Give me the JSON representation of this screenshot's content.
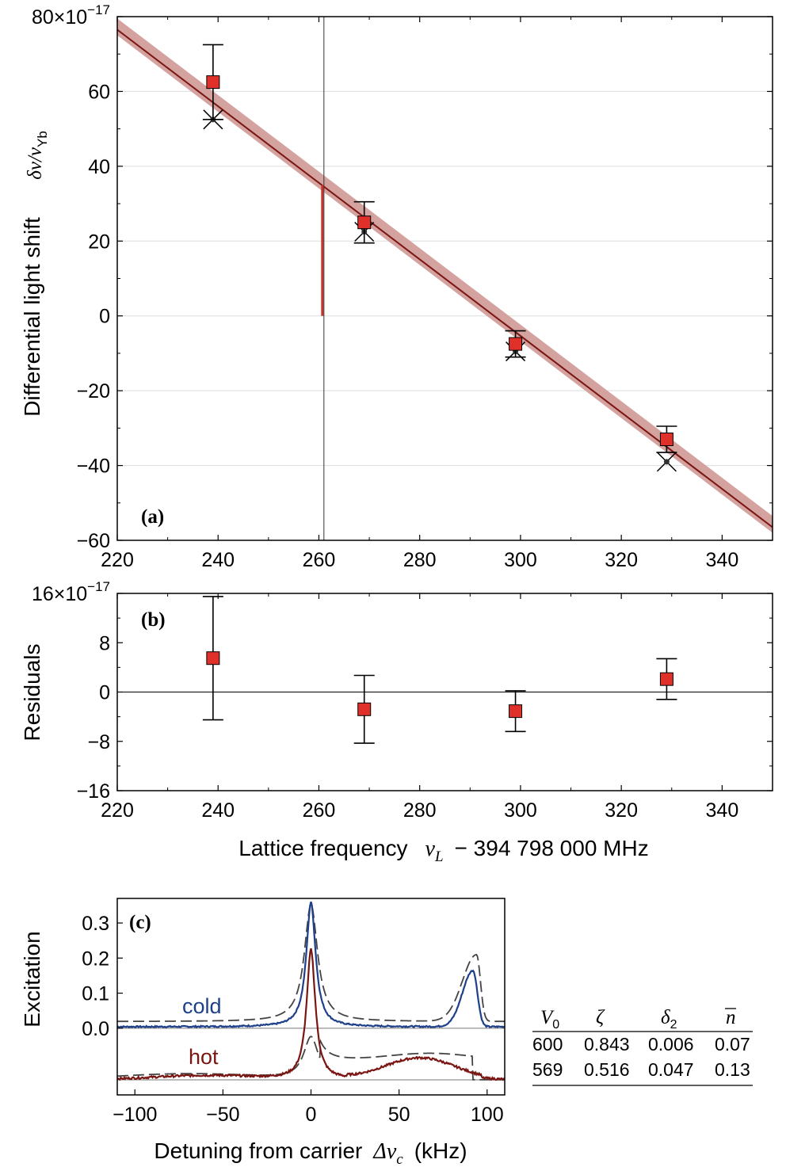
{
  "colors": {
    "fit_line": "#7a1512",
    "fit_band": "#d4a3a0",
    "marker_fill": "#e0302a",
    "vertical_bar": "#c8302a",
    "cold_curve": "#1e3f8a",
    "hot_curve": "#7a1512",
    "grid": "#dddddd",
    "dashed": "#444444"
  },
  "chart_data": [
    {
      "id": "a",
      "type": "scatter",
      "panel_tag": "(a)",
      "ylabel": "Differential light shift",
      "ylabel_symbol": "δν/ν",
      "ylabel_subscript": "Yb",
      "ylim": [
        -60,
        80
      ],
      "xlim": [
        220,
        350
      ],
      "yticks": [
        -60,
        -40,
        -20,
        0,
        20,
        40,
        60,
        80
      ],
      "ytick_labels": [
        "−60",
        "−40",
        "−20",
        "0",
        "20",
        "40",
        "60",
        "80×10"
      ],
      "y_exponent": "−17",
      "xticks": [
        220,
        240,
        260,
        280,
        300,
        320,
        340
      ],
      "xtick_labels": [
        "220",
        "240",
        "260",
        "280",
        "300",
        "320",
        "340"
      ],
      "grid": true,
      "fit_line": {
        "x": [
          220,
          350
        ],
        "y": [
          76.5,
          -56.5
        ]
      },
      "fit_band_halfwidth": 1.5,
      "vertical_marker": {
        "x": 261,
        "y_bottom": 0,
        "y_top": 35
      },
      "vertical_line_x": 261,
      "measurements": [
        {
          "x": 239,
          "y": 62.5,
          "err": 10
        },
        {
          "x": 269,
          "y": 25,
          "err": 5.5
        },
        {
          "x": 299,
          "y": -7.5,
          "err": 3.5
        },
        {
          "x": 329,
          "y": -33,
          "err": 3.5
        }
      ],
      "alt_points": [
        {
          "x": 239,
          "y": 52.5
        },
        {
          "x": 269,
          "y": 22.5
        },
        {
          "x": 299,
          "y": -9.5
        },
        {
          "x": 329,
          "y": -39
        }
      ]
    },
    {
      "id": "b",
      "type": "scatter",
      "panel_tag": "(b)",
      "ylabel": "Residuals",
      "ylim": [
        -16,
        16
      ],
      "xlim": [
        220,
        350
      ],
      "yticks": [
        -16,
        -8,
        0,
        8,
        16
      ],
      "ytick_labels": [
        "−16",
        "−8",
        "0",
        "8",
        "16×10"
      ],
      "y_exponent": "−17",
      "xticks": [
        220,
        240,
        260,
        280,
        300,
        320,
        340
      ],
      "xtick_labels": [
        "220",
        "240",
        "260",
        "280",
        "300",
        "320",
        "340"
      ],
      "xlabel": "Lattice frequency",
      "xlabel_symbol": "ν",
      "xlabel_sub": "L",
      "xlabel_rest": "− 394 798 000 MHz",
      "measurements": [
        {
          "x": 239,
          "y": 5.5,
          "err": 10
        },
        {
          "x": 269,
          "y": -2.8,
          "err": 5.5
        },
        {
          "x": 299,
          "y": -3.1,
          "err": 3.3
        },
        {
          "x": 329,
          "y": 2.1,
          "err": 3.3
        }
      ]
    },
    {
      "id": "c",
      "type": "line",
      "panel_tag": "(c)",
      "ylabel": "Excitation",
      "xlabel": "Detuning from carrier",
      "xlabel_symbol": "Δν",
      "xlabel_sub": "c",
      "xlabel_unit": "(kHz)",
      "xlim": [
        -110,
        110
      ],
      "ylim": [
        -0.19,
        0.37
      ],
      "yticks": [
        0.0,
        0.1,
        0.2,
        0.3
      ],
      "ytick_labels": [
        "0.0",
        "0.1",
        "0.2",
        "0.3"
      ],
      "xticks": [
        -100,
        -50,
        0,
        50,
        100
      ],
      "xtick_labels": [
        "−100",
        "−50",
        "0",
        "50",
        "100"
      ],
      "hot_offset": -0.147,
      "series": [
        {
          "name": "cold",
          "label": "cold"
        },
        {
          "name": "hot",
          "label": "hot"
        }
      ]
    }
  ],
  "table": {
    "headers": [
      "V",
      "ζ",
      "δ",
      "n"
    ],
    "header_subs": [
      "0",
      "",
      "2",
      ""
    ],
    "rows": [
      [
        "600",
        "0.843",
        "0.006",
        "0.07"
      ],
      [
        "569",
        "0.516",
        "0.047",
        "0.13"
      ]
    ]
  }
}
